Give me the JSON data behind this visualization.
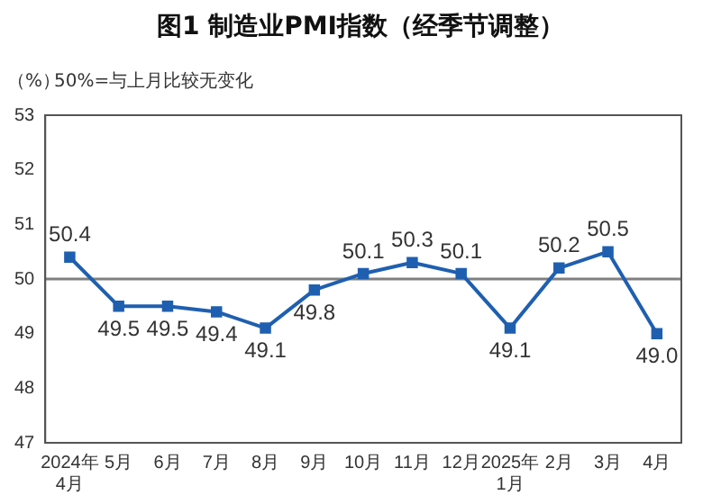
{
  "chart_data": {
    "type": "line",
    "title": "图1  制造业PMI指数（经季节调整）",
    "ylabel": "（%）",
    "annotations": [
      "50%=与上月比较无变化"
    ],
    "categories": [
      "2024年\n4月",
      "5月",
      "6月",
      "7月",
      "8月",
      "9月",
      "10月",
      "11月",
      "12月",
      "2025年\n1月",
      "2月",
      "3月",
      "4月"
    ],
    "series": [
      {
        "color": "#1f5fb0",
        "values": [
          50.4,
          49.5,
          49.5,
          49.4,
          49.1,
          49.8,
          50.1,
          50.3,
          50.1,
          49.1,
          50.2,
          50.5,
          49.0
        ],
        "value_labels": [
          "50.4",
          "49.5",
          "49.5",
          "49.4",
          "49.1",
          "49.8",
          "50.1",
          "50.3",
          "50.1",
          "49.1",
          "50.2",
          "50.5",
          "49.0"
        ]
      }
    ],
    "ylim": [
      47,
      53
    ],
    "yticks": [
      47,
      48,
      49,
      50,
      51,
      52,
      53
    ],
    "grid": false,
    "legend": false,
    "marker": "square",
    "line_style": "solid",
    "ref_lines": [
      {
        "axis": "y",
        "value": 50,
        "color": "#808080"
      }
    ]
  }
}
